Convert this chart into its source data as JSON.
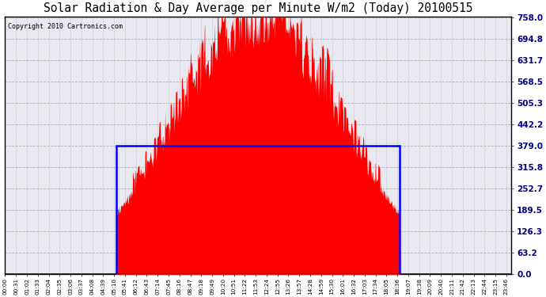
{
  "title": "Solar Radiation & Day Average per Minute W/m2 (Today) 20100515",
  "copyright": "Copyright 2010 Cartronics.com",
  "y_max": 758.0,
  "y_min": 0.0,
  "y_ticks": [
    0.0,
    63.2,
    126.3,
    189.5,
    252.7,
    315.8,
    379.0,
    442.2,
    505.3,
    568.5,
    631.7,
    694.8,
    758.0
  ],
  "bg_color": "#ffffff",
  "plot_bg_color": "#e8e8f0",
  "bar_color": "#ff0000",
  "avg_line_color": "#0000ff",
  "total_minutes": 1440,
  "sunrise_minute": 316,
  "sunset_minute": 1123,
  "avg_value": 379.0,
  "peak_value": 758.0,
  "tick_interval": 31
}
